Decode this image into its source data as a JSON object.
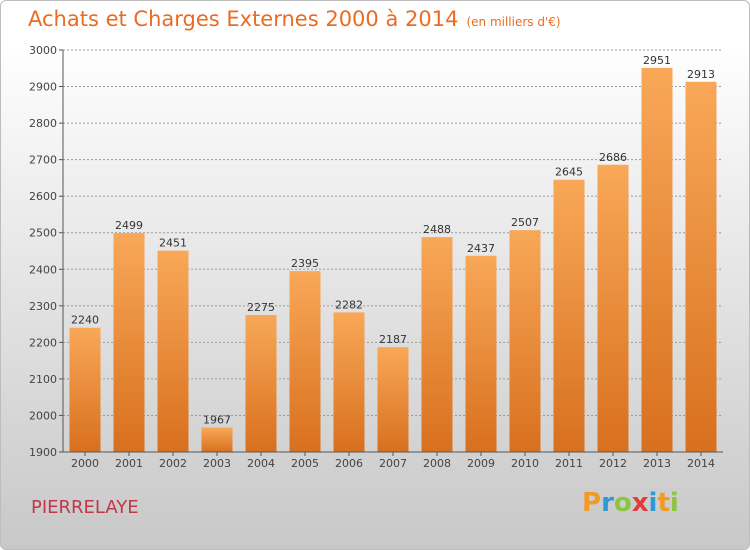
{
  "title": "Achats et Charges Externes 2000 à 2014",
  "subtitle": "(en milliers d'€)",
  "location": "PIERRELAYE",
  "brand": {
    "letters": [
      "P",
      "r",
      "o",
      "x",
      "i",
      "t",
      "i"
    ],
    "colors": [
      "#f29a22",
      "#2d9ad6",
      "#8cc63f",
      "#e23b3b",
      "#2d9ad6",
      "#f29a22",
      "#8cc63f"
    ]
  },
  "colors": {
    "accent": "#ec6b22",
    "location": "#c2364a",
    "bar_top": "#f8a858",
    "bar_bottom": "#d8701e",
    "grid": "#9a9a9a",
    "axis": "#555555"
  },
  "chart_data": {
    "type": "bar",
    "title": "Achats et Charges Externes 2000 à 2014",
    "subtitle": "(en milliers d'€)",
    "categories": [
      "2000",
      "2001",
      "2002",
      "2003",
      "2004",
      "2005",
      "2006",
      "2007",
      "2008",
      "2009",
      "2010",
      "2011",
      "2012",
      "2013",
      "2014"
    ],
    "values": [
      2240,
      2499,
      2451,
      1967,
      2275,
      2395,
      2282,
      2187,
      2488,
      2437,
      2507,
      2645,
      2686,
      2951,
      2913
    ],
    "ylim": [
      1900,
      3000
    ],
    "yticks": [
      1900,
      2000,
      2100,
      2200,
      2300,
      2400,
      2500,
      2600,
      2700,
      2800,
      2900,
      3000
    ],
    "grid": true,
    "xlabel": "",
    "ylabel": ""
  }
}
